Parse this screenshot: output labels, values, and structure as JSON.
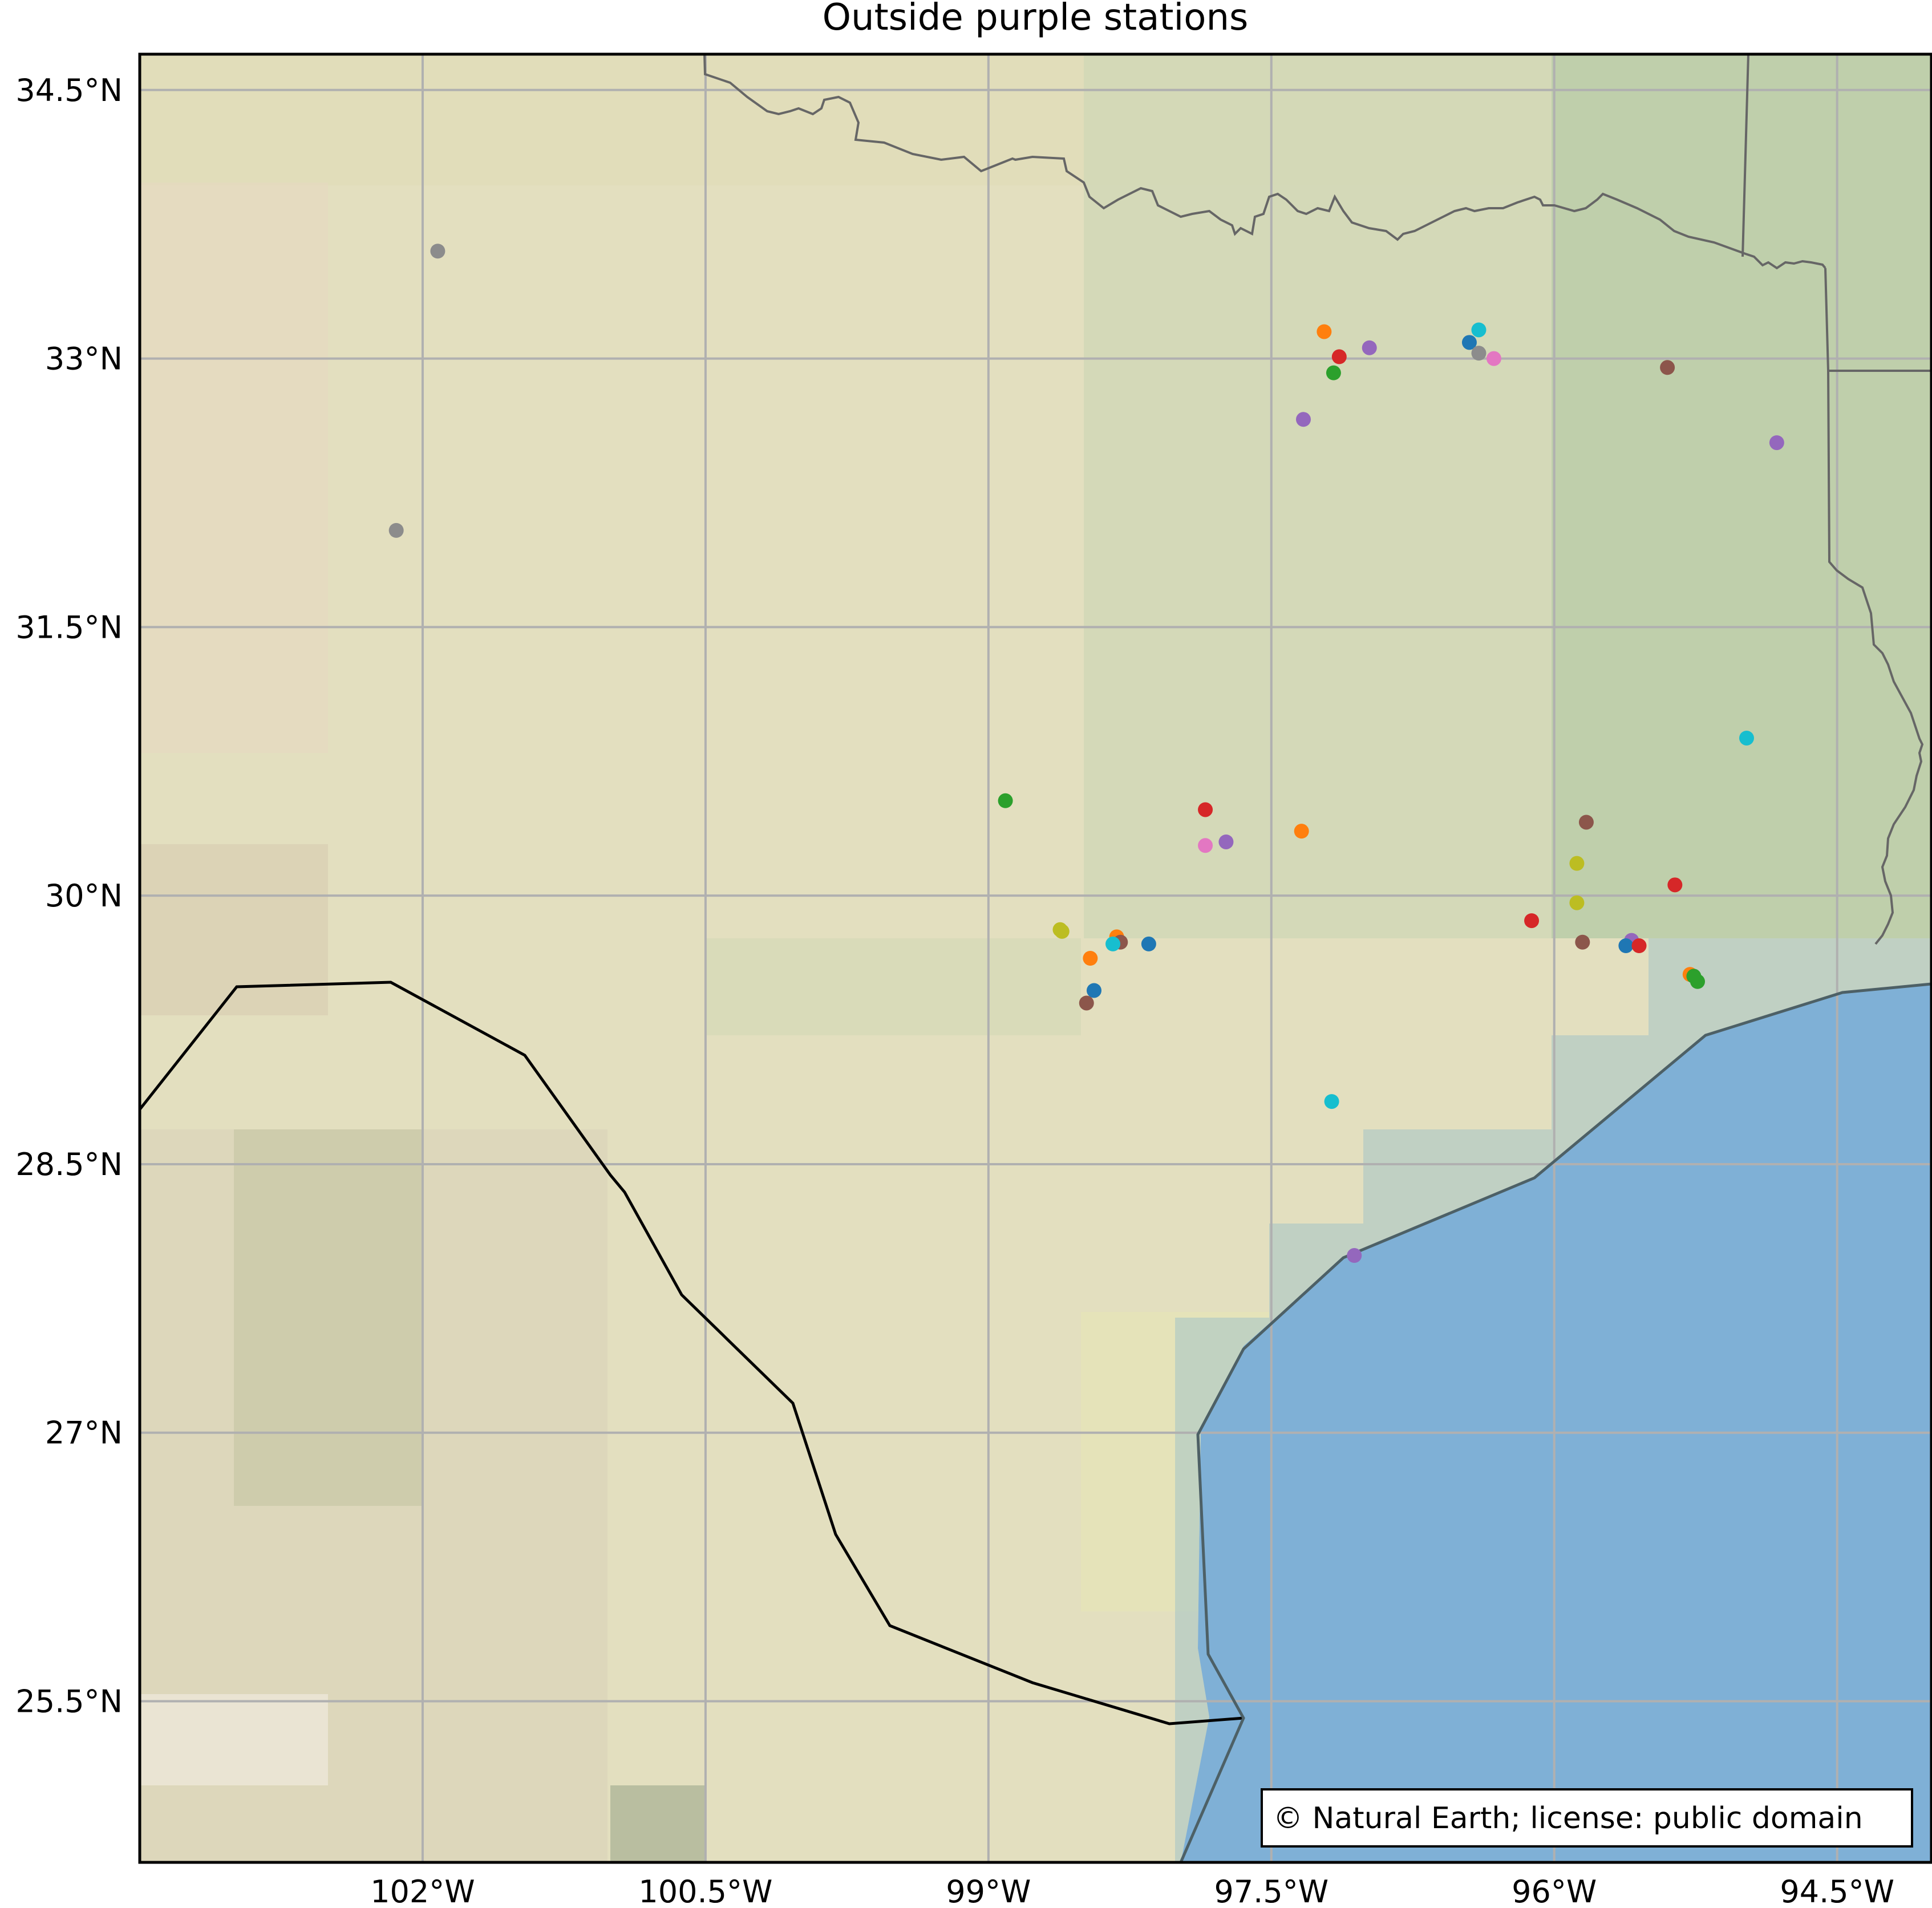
{
  "title": "Outside purple stations",
  "attribution": "© Natural Earth; license: public domain",
  "extent": {
    "lon_min": -103.5,
    "lon_max": -94.0,
    "lat_min": 24.6,
    "lat_max": 34.7
  },
  "x_ticks": [
    {
      "value": -102.0,
      "label": "102°W"
    },
    {
      "value": -100.5,
      "label": "100.5°W"
    },
    {
      "value": -99.0,
      "label": "99°W"
    },
    {
      "value": -97.5,
      "label": "97.5°W"
    },
    {
      "value": -96.0,
      "label": "96°W"
    },
    {
      "value": -94.5,
      "label": "94.5°W"
    }
  ],
  "y_ticks": [
    {
      "value": 34.5,
      "label": "34.5°N"
    },
    {
      "value": 33.0,
      "label": "33°N"
    },
    {
      "value": 31.5,
      "label": "31.5°N"
    },
    {
      "value": 30.0,
      "label": "30°N"
    },
    {
      "value": 28.5,
      "label": "28.5°N"
    },
    {
      "value": 27.0,
      "label": "27°N"
    },
    {
      "value": 25.5,
      "label": "25.5°N"
    }
  ],
  "colors": {
    "land": "#e3dfbf",
    "ocean": "#7fb0d6",
    "grid": "#b0b0b0",
    "border_state": "#666666",
    "border_country": "#000000",
    "coast": "#4d6066"
  },
  "stations": [
    {
      "lon": -101.92,
      "lat": 33.6,
      "color": "#8c8c8c"
    },
    {
      "lon": -102.14,
      "lat": 32.04,
      "color": "#8c8c8c"
    },
    {
      "lon": -97.22,
      "lat": 33.15,
      "color": "#ff7f0e"
    },
    {
      "lon": -97.14,
      "lat": 33.01,
      "color": "#d62728"
    },
    {
      "lon": -97.17,
      "lat": 32.92,
      "color": "#2ca02c"
    },
    {
      "lon": -96.98,
      "lat": 33.06,
      "color": "#9467bd"
    },
    {
      "lon": -97.33,
      "lat": 32.66,
      "color": "#9467bd"
    },
    {
      "lon": -96.45,
      "lat": 33.09,
      "color": "#1f77b4"
    },
    {
      "lon": -96.4,
      "lat": 33.16,
      "color": "#17becf"
    },
    {
      "lon": -96.4,
      "lat": 33.03,
      "color": "#8c8c8c"
    },
    {
      "lon": -96.32,
      "lat": 33.0,
      "color": "#e377c2"
    },
    {
      "lon": -95.4,
      "lat": 32.95,
      "color": "#8c564b"
    },
    {
      "lon": -94.82,
      "lat": 32.53,
      "color": "#9467bd"
    },
    {
      "lon": -94.98,
      "lat": 30.88,
      "color": "#17becf"
    },
    {
      "lon": -98.91,
      "lat": 30.53,
      "color": "#2ca02c"
    },
    {
      "lon": -97.85,
      "lat": 30.48,
      "color": "#d62728"
    },
    {
      "lon": -97.85,
      "lat": 30.28,
      "color": "#e377c2"
    },
    {
      "lon": -97.74,
      "lat": 30.3,
      "color": "#9467bd"
    },
    {
      "lon": -97.34,
      "lat": 30.36,
      "color": "#ff7f0e"
    },
    {
      "lon": -95.83,
      "lat": 30.41,
      "color": "#8c564b"
    },
    {
      "lon": -95.88,
      "lat": 30.18,
      "color": "#bcbd22"
    },
    {
      "lon": -95.88,
      "lat": 29.96,
      "color": "#bcbd22"
    },
    {
      "lon": -95.36,
      "lat": 30.06,
      "color": "#d62728"
    },
    {
      "lon": -96.12,
      "lat": 29.86,
      "color": "#d62728"
    },
    {
      "lon": -95.85,
      "lat": 29.74,
      "color": "#8c564b"
    },
    {
      "lon": -95.59,
      "lat": 29.75,
      "color": "#9467bd"
    },
    {
      "lon": -95.62,
      "lat": 29.72,
      "color": "#1f77b4"
    },
    {
      "lon": -95.55,
      "lat": 29.72,
      "color": "#d62728"
    },
    {
      "lon": -95.28,
      "lat": 29.56,
      "color": "#ff7f0e"
    },
    {
      "lon": -95.26,
      "lat": 29.55,
      "color": "#2ca02c"
    },
    {
      "lon": -95.24,
      "lat": 29.52,
      "color": "#2ca02c"
    },
    {
      "lon": -98.62,
      "lat": 29.81,
      "color": "#bcbd22"
    },
    {
      "lon": -98.61,
      "lat": 29.8,
      "color": "#bcbd22"
    },
    {
      "lon": -98.32,
      "lat": 29.77,
      "color": "#ff7f0e"
    },
    {
      "lon": -98.3,
      "lat": 29.74,
      "color": "#8c564b"
    },
    {
      "lon": -98.34,
      "lat": 29.73,
      "color": "#17becf"
    },
    {
      "lon": -98.15,
      "lat": 29.73,
      "color": "#1f77b4"
    },
    {
      "lon": -98.46,
      "lat": 29.65,
      "color": "#ff7f0e"
    },
    {
      "lon": -98.44,
      "lat": 29.47,
      "color": "#1f77b4"
    },
    {
      "lon": -98.48,
      "lat": 29.4,
      "color": "#8c564b"
    },
    {
      "lon": -97.18,
      "lat": 28.85,
      "color": "#17becf"
    },
    {
      "lon": -97.06,
      "lat": 27.99,
      "color": "#9467bd"
    }
  ]
}
